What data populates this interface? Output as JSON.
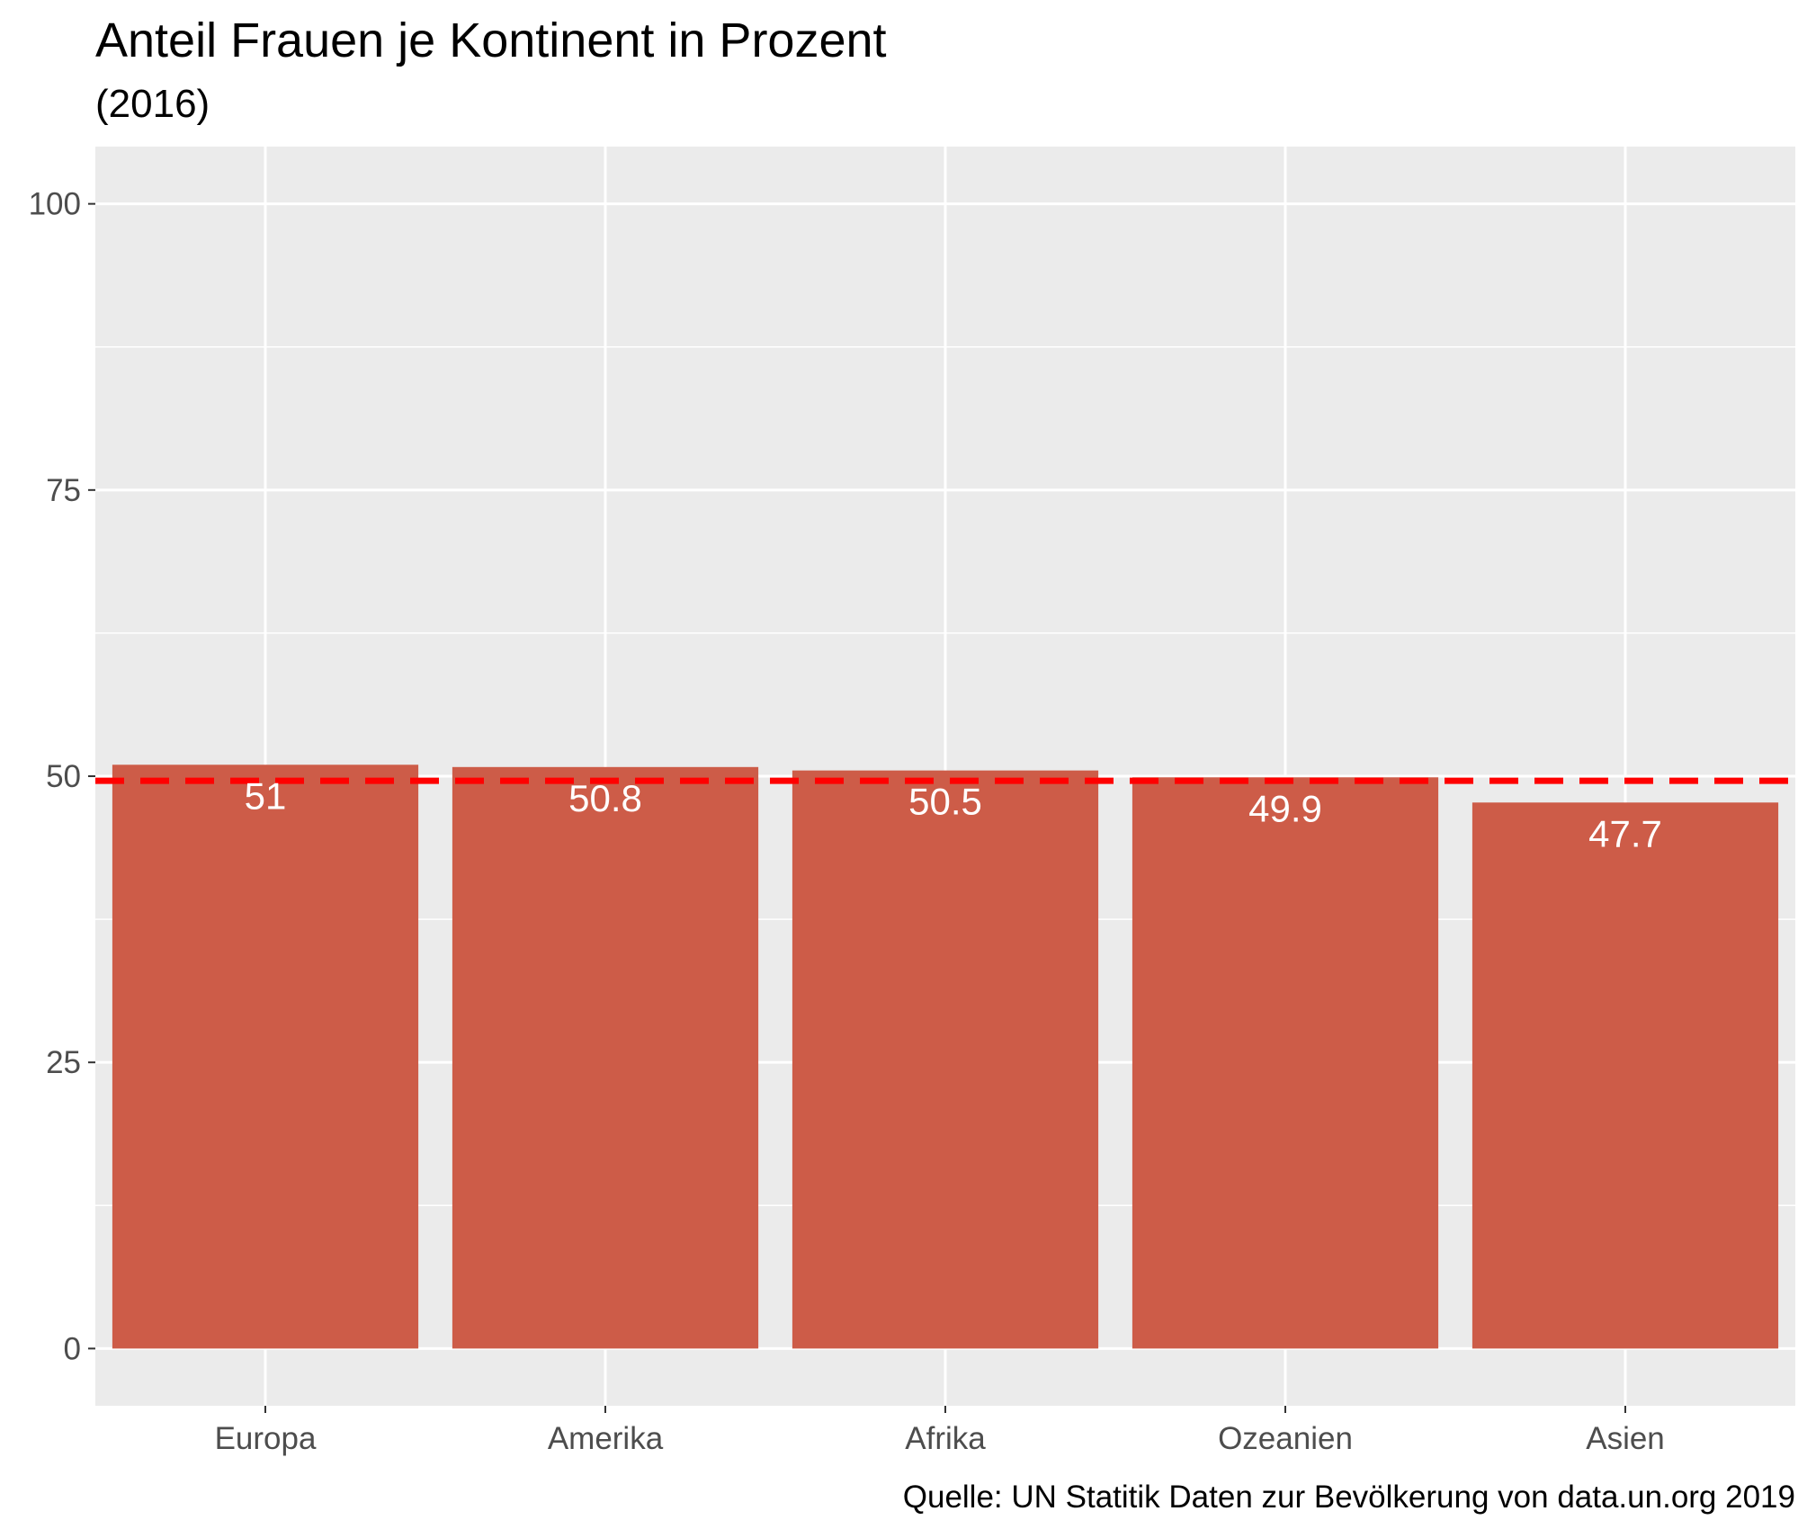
{
  "chart_data": {
    "type": "bar",
    "title": "Anteil Frauen je Kontinent in Prozent",
    "subtitle": "(2016)",
    "caption": "Quelle: UN Statitik Daten zur Bevölkerung von data.un.org 2019",
    "xlabel": "",
    "ylabel": "",
    "categories": [
      "Europa",
      "Amerika",
      "Afrika",
      "Ozeanien",
      "Asien"
    ],
    "values": [
      51,
      50.8,
      50.5,
      49.9,
      47.7
    ],
    "value_labels": [
      "51",
      "50.8",
      "50.5",
      "49.9",
      "47.7"
    ],
    "ylim": [
      -5,
      105
    ],
    "yticks": [
      0,
      25,
      50,
      75,
      100
    ],
    "ytick_labels": [
      "0",
      "25",
      "50",
      "75",
      "100"
    ],
    "reference_line": {
      "value": 49.6,
      "style": "dashed",
      "color": "#ff0000"
    },
    "grid": true,
    "legend": "none",
    "colors": {
      "bar": "#cd5c48",
      "panel": "#ebebeb",
      "grid": "#ffffff",
      "bar_label": "#ffffff"
    }
  }
}
